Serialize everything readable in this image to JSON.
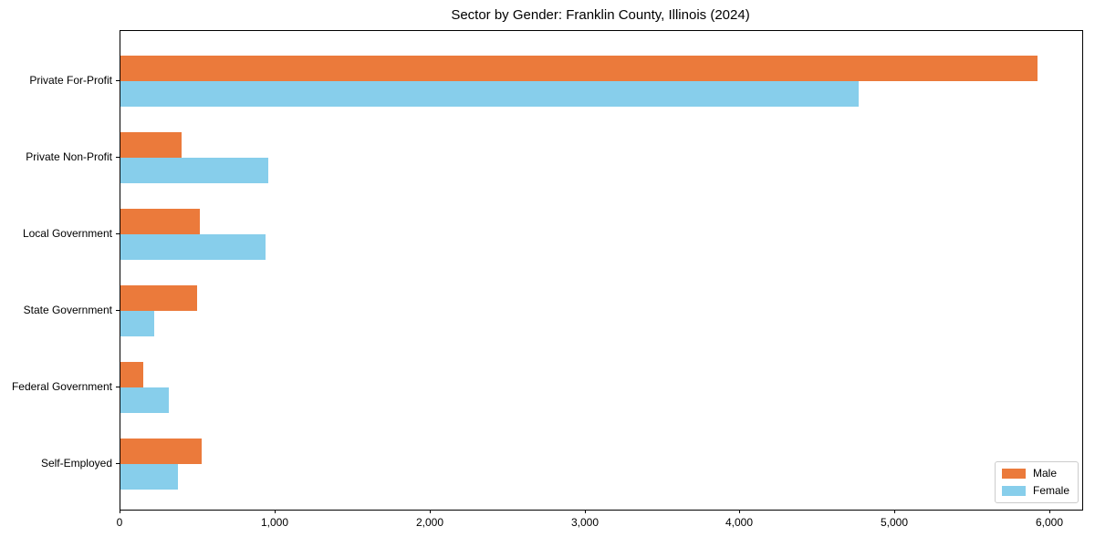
{
  "title": "Sector by Gender: Franklin County, Illinois (2024)",
  "colors": {
    "male": "#EB7A3B",
    "female": "#87CEEB",
    "axis": "#000000",
    "legend_border": "#cccccc",
    "background": "#ffffff"
  },
  "chart_data": {
    "type": "bar",
    "orientation": "horizontal",
    "title": "Sector by Gender: Franklin County, Illinois (2024)",
    "categories": [
      "Private For-Profit",
      "Private Non-Profit",
      "Local Government",
      "State Government",
      "Federal Government",
      "Self-Employed"
    ],
    "series": [
      {
        "name": "Male",
        "color": "#EB7A3B",
        "values": [
          5915,
          395,
          510,
          495,
          145,
          525
        ]
      },
      {
        "name": "Female",
        "color": "#87CEEB",
        "values": [
          4765,
          955,
          935,
          220,
          310,
          370
        ]
      }
    ],
    "xlabel": "",
    "ylabel": "",
    "xlim": [
      0,
      6000
    ],
    "x_ticks": [
      0,
      1000,
      2000,
      3000,
      4000,
      5000,
      6000
    ],
    "x_tick_labels": [
      "0",
      "1,000",
      "2,000",
      "3,000",
      "4,000",
      "5,000",
      "6,000"
    ],
    "grid": false,
    "legend_position": "lower right"
  }
}
